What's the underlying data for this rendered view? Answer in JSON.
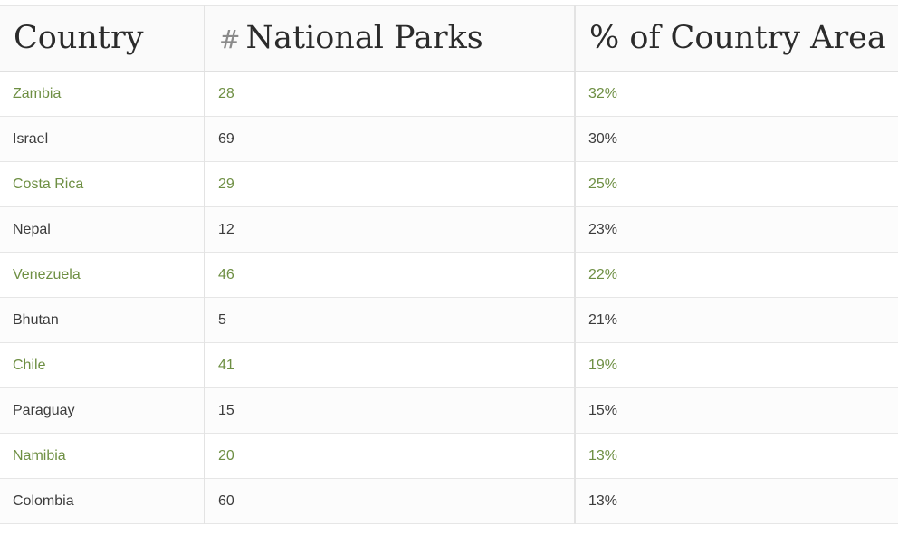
{
  "table": {
    "headers": [
      "Country",
      "# National Parks",
      "% of Country Area"
    ],
    "header_hash": "#",
    "header_parks_label": "National Parks",
    "rows": [
      {
        "country": "Zambia",
        "parks": "28",
        "area": "32%"
      },
      {
        "country": "Israel",
        "parks": "69",
        "area": "30%"
      },
      {
        "country": "Costa Rica",
        "parks": "29",
        "area": "25%"
      },
      {
        "country": "Nepal",
        "parks": "12",
        "area": "23%"
      },
      {
        "country": "Venezuela",
        "parks": "46",
        "area": "22%"
      },
      {
        "country": "Bhutan",
        "parks": "5",
        "area": "21%"
      },
      {
        "country": "Chile",
        "parks": "41",
        "area": "19%"
      },
      {
        "country": "Paraguay",
        "parks": "15",
        "area": "15%"
      },
      {
        "country": "Namibia",
        "parks": "20",
        "area": "13%"
      },
      {
        "country": "Colombia",
        "parks": "60",
        "area": "13%"
      }
    ]
  },
  "colors": {
    "highlight_text": "#6e8f43",
    "body_text": "#3c3c3c",
    "header_text": "#2b2b2b"
  }
}
